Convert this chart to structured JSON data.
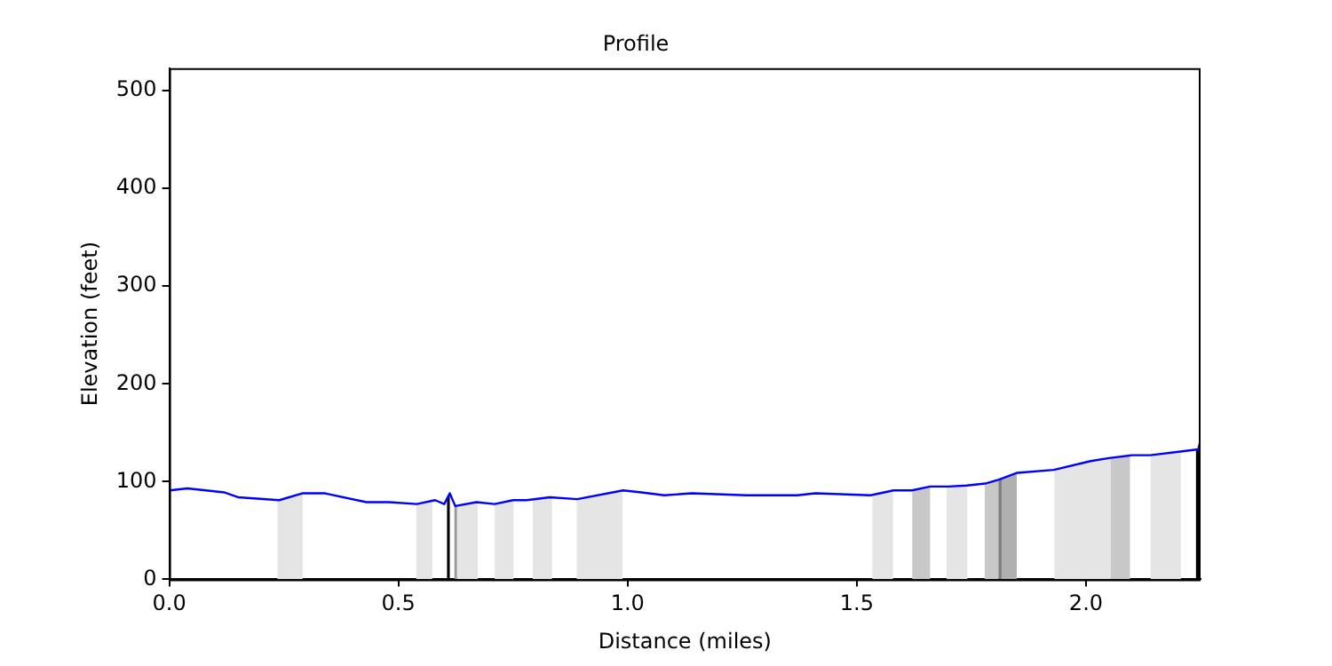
{
  "chart_data": {
    "type": "line",
    "title": "Profile",
    "xlabel": "Distance (miles)",
    "ylabel": "Elevation (feet)",
    "xlim": [
      0,
      2.25
    ],
    "ylim": [
      0,
      523
    ],
    "xticks": [
      {
        "value": 0,
        "label": "0.0"
      },
      {
        "value": 0.5,
        "label": "0.5"
      },
      {
        "value": 1,
        "label": "1.0"
      },
      {
        "value": 1.5,
        "label": "1.5"
      },
      {
        "value": 2,
        "label": "2.0"
      }
    ],
    "yticks": [
      0,
      100,
      200,
      300,
      400,
      500
    ],
    "grid": false,
    "legend": false,
    "marker": "none",
    "line_style": "solid",
    "series": [
      {
        "color": "#0000ff",
        "x": [
          0,
          0.04,
          0.12,
          0.15,
          0.24,
          0.29,
          0.34,
          0.43,
          0.48,
          0.54,
          0.58,
          0.6,
          0.612,
          0.624,
          0.67,
          0.71,
          0.75,
          0.78,
          0.83,
          0.89,
          0.99,
          1.03,
          1.08,
          1.14,
          1.26,
          1.37,
          1.41,
          1.53,
          1.58,
          1.62,
          1.66,
          1.7,
          1.74,
          1.78,
          1.81,
          1.85,
          1.93,
          2.01,
          2.05,
          2.1,
          2.14,
          2.21,
          2.245,
          2.25
        ],
        "values": [
          91,
          93,
          89,
          84,
          81,
          88,
          88,
          79,
          79,
          77,
          81,
          77,
          88,
          75,
          79,
          77,
          81,
          81,
          84,
          82,
          91,
          89,
          86,
          88,
          86,
          86,
          88,
          86,
          91,
          91,
          95,
          95,
          96,
          98,
          102,
          109,
          112,
          121,
          124,
          127,
          127,
          131,
          133,
          143
        ]
      }
    ],
    "bands": [
      {
        "axis": "x",
        "from": 0.236,
        "to": 0.291,
        "color": "#e5e5e5"
      },
      {
        "axis": "x",
        "from": 0.539,
        "to": 0.574,
        "color": "#e5e5e5"
      },
      {
        "axis": "x",
        "from": 0.606,
        "to": 0.612,
        "color": "#000000"
      },
      {
        "axis": "x",
        "from": 0.622,
        "to": 0.628,
        "color": "#999999"
      },
      {
        "axis": "x",
        "from": 0.628,
        "to": 0.673,
        "color": "#e5e5e5"
      },
      {
        "axis": "x",
        "from": 0.71,
        "to": 0.751,
        "color": "#e5e5e5"
      },
      {
        "axis": "x",
        "from": 0.793,
        "to": 0.835,
        "color": "#e5e5e5"
      },
      {
        "axis": "x",
        "from": 0.889,
        "to": 0.989,
        "color": "#e5e5e5"
      },
      {
        "axis": "x",
        "from": 1.534,
        "to": 1.579,
        "color": "#e5e5e5"
      },
      {
        "axis": "x",
        "from": 1.621,
        "to": 1.66,
        "color": "#c8c8c8"
      },
      {
        "axis": "x",
        "from": 1.696,
        "to": 1.741,
        "color": "#e5e5e5"
      },
      {
        "axis": "x",
        "from": 1.779,
        "to": 1.809,
        "color": "#c8c8c8"
      },
      {
        "axis": "x",
        "from": 1.809,
        "to": 1.816,
        "color": "#808080"
      },
      {
        "axis": "x",
        "from": 1.816,
        "to": 1.849,
        "color": "#b0b0b0"
      },
      {
        "axis": "x",
        "from": 1.931,
        "to": 2.054,
        "color": "#e5e5e5"
      },
      {
        "axis": "x",
        "from": 2.054,
        "to": 2.096,
        "color": "#c8c8c8"
      },
      {
        "axis": "x",
        "from": 2.141,
        "to": 2.207,
        "color": "#e5e5e5"
      },
      {
        "axis": "x",
        "from": 2.24,
        "to": 2.25,
        "color": "#000000"
      }
    ]
  }
}
